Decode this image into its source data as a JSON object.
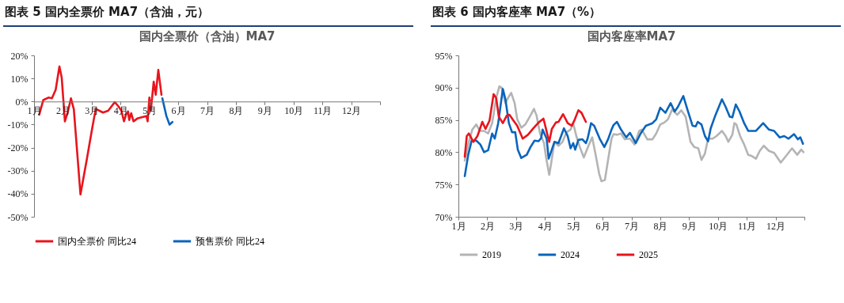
{
  "chart_data": [
    {
      "type": "line",
      "title": "图表 5   国内全票价 MA7（含油，元）",
      "subtitle": "国内全票价（含油）MA7",
      "legend": "bottom",
      "xlim": [
        1,
        13
      ],
      "xticks": [
        {
          "value": 1,
          "label": "1月"
        },
        {
          "value": 2,
          "label": "2月"
        },
        {
          "value": 3,
          "label": "3月"
        },
        {
          "value": 4,
          "label": "4月"
        },
        {
          "value": 5,
          "label": "5月"
        },
        {
          "value": 6,
          "label": "6月"
        },
        {
          "value": 7,
          "label": "7月"
        },
        {
          "value": 8,
          "label": "8月"
        },
        {
          "value": 9,
          "label": "9月"
        },
        {
          "value": 10,
          "label": "10月"
        },
        {
          "value": 11,
          "label": "11月"
        },
        {
          "value": 12,
          "label": "12月"
        },
        {
          "value": 13,
          "label": null
        }
      ],
      "ylim": [
        -50,
        20
      ],
      "yticks": [
        {
          "value": -50,
          "label": "-50%"
        },
        {
          "value": -40,
          "label": "-40%"
        },
        {
          "value": -30,
          "label": "-30%"
        },
        {
          "value": -20,
          "label": "-20%"
        },
        {
          "value": -10,
          "label": "-10%"
        },
        {
          "value": 0,
          "label": "0%"
        },
        {
          "value": 10,
          "label": "10%"
        },
        {
          "value": 20,
          "label": "20%"
        }
      ],
      "series": [
        {
          "name": "国内全票价 同比24",
          "color": "#e8141c",
          "x": [
            1.18,
            1.32,
            1.5,
            1.62,
            1.75,
            1.88,
            1.96,
            2.07,
            2.17,
            2.28,
            2.38,
            2.61,
            2.83,
            3.02,
            3.14,
            3.39,
            3.57,
            3.8,
            3.94,
            4.03,
            4.12,
            4.19,
            4.26,
            4.3,
            4.37,
            4.45,
            4.58,
            4.76,
            4.9,
            4.94,
            5.0,
            5.05,
            5.15,
            5.22,
            5.31,
            5.42
          ],
          "values": [
            -5.7,
            0.6,
            1.7,
            1.4,
            5.1,
            15.2,
            10.3,
            -8.6,
            -4.6,
            1.4,
            -3.4,
            -40.3,
            -25.1,
            -11.4,
            -3.2,
            -4.8,
            -4.0,
            -0.3,
            -2.3,
            -4.0,
            -8.6,
            -5.7,
            -4.3,
            -8.0,
            -5.1,
            -8.6,
            -7.4,
            -6.8,
            -6.3,
            -8.6,
            1.7,
            -4.0,
            8.6,
            2.9,
            13.7,
            2.9
          ]
        },
        {
          "name": "预售票价 同比24",
          "color": "#0a64bc",
          "x": [
            5.45,
            5.59,
            5.7,
            5.8
          ],
          "values": [
            1.4,
            -6.3,
            -10.0,
            -8.9
          ]
        }
      ]
    },
    {
      "type": "line",
      "title": "图表 6   国内客座率 MA7（%）",
      "subtitle": "国内客座率MA7",
      "legend": "bottom",
      "xlim": [
        1,
        13
      ],
      "xticks": [
        {
          "value": 1,
          "label": "1月"
        },
        {
          "value": 2,
          "label": "2月"
        },
        {
          "value": 3,
          "label": "3月"
        },
        {
          "value": 4,
          "label": "4月"
        },
        {
          "value": 5,
          "label": "5月"
        },
        {
          "value": 6,
          "label": "6月"
        },
        {
          "value": 7,
          "label": "7月"
        },
        {
          "value": 8,
          "label": "8月"
        },
        {
          "value": 9,
          "label": "9月"
        },
        {
          "value": 10,
          "label": "10月"
        },
        {
          "value": 11,
          "label": "11月"
        },
        {
          "value": 12,
          "label": "12月"
        },
        {
          "value": 13,
          "label": null
        }
      ],
      "ylim": [
        70,
        95
      ],
      "yticks": [
        {
          "value": 70,
          "label": "70%"
        },
        {
          "value": 75,
          "label": "75%"
        },
        {
          "value": 80,
          "label": "80%"
        },
        {
          "value": 85,
          "label": "85%"
        },
        {
          "value": 90,
          "label": "90%"
        },
        {
          "value": 95,
          "label": "95%"
        }
      ],
      "series": [
        {
          "name": "2019",
          "color": "#b4b4b4",
          "x": [
            1.22,
            1.34,
            1.48,
            1.62,
            1.74,
            1.89,
            2.03,
            2.17,
            2.31,
            2.42,
            2.5,
            2.63,
            2.72,
            2.83,
            2.95,
            3.04,
            3.18,
            3.32,
            3.5,
            3.62,
            3.71,
            3.83,
            3.97,
            4.04,
            4.15,
            4.22,
            4.33,
            4.47,
            4.61,
            4.75,
            4.89,
            4.98,
            5.09,
            5.21,
            5.35,
            5.53,
            5.64,
            5.76,
            5.88,
            5.96,
            6.08,
            6.19,
            6.31,
            6.38,
            6.5,
            6.64,
            6.77,
            6.95,
            7.11,
            7.27,
            7.36,
            7.55,
            7.73,
            7.86,
            8.0,
            8.14,
            8.27,
            8.41,
            8.59,
            8.73,
            8.88,
            9.05,
            9.18,
            9.32,
            9.43,
            9.55,
            9.66,
            9.82,
            9.95,
            10.14,
            10.27,
            10.36,
            10.5,
            10.57,
            10.64,
            10.77,
            10.91,
            11.05,
            11.18,
            11.32,
            11.45,
            11.59,
            11.77,
            11.95,
            12.18,
            12.36,
            12.57,
            12.75,
            12.89,
            12.97
          ],
          "values": [
            78.7,
            81.2,
            83.5,
            84.3,
            83.3,
            83.3,
            82.9,
            84.5,
            88.4,
            90.2,
            90.0,
            87.6,
            88.4,
            89.2,
            87.6,
            85.1,
            83.8,
            84.3,
            85.7,
            86.7,
            85.7,
            82.9,
            81.4,
            79.2,
            76.5,
            78.4,
            81.6,
            81.0,
            81.6,
            83.1,
            83.5,
            84.5,
            82.5,
            80.8,
            79.2,
            81.2,
            82.3,
            79.6,
            76.7,
            75.5,
            75.7,
            78.8,
            82.1,
            82.8,
            82.7,
            82.9,
            82.0,
            82.1,
            81.2,
            83.3,
            83.5,
            82.0,
            82.0,
            82.9,
            84.3,
            84.6,
            85.1,
            86.6,
            85.8,
            86.5,
            85.5,
            81.6,
            80.8,
            80.6,
            78.8,
            79.8,
            82.1,
            82.1,
            82.5,
            83.3,
            82.5,
            81.6,
            82.7,
            84.5,
            84.3,
            82.5,
            81.2,
            79.6,
            79.4,
            79.0,
            80.2,
            81.0,
            80.2,
            79.9,
            78.4,
            79.4,
            80.6,
            79.6,
            80.4,
            80.0
          ]
        },
        {
          "name": "2024",
          "color": "#0a64bc",
          "x": [
            1.22,
            1.34,
            1.46,
            1.62,
            1.76,
            1.89,
            2.03,
            2.17,
            2.26,
            2.38,
            2.54,
            2.63,
            2.75,
            2.86,
            2.97,
            3.06,
            3.18,
            3.37,
            3.5,
            3.64,
            3.78,
            3.87,
            3.92,
            4.06,
            4.13,
            4.24,
            4.33,
            4.47,
            4.66,
            4.79,
            4.89,
            4.98,
            5.05,
            5.16,
            5.3,
            5.42,
            5.48,
            5.6,
            5.71,
            5.9,
            6.06,
            6.19,
            6.31,
            6.38,
            6.5,
            6.64,
            6.82,
            6.95,
            7.15,
            7.32,
            7.5,
            7.73,
            7.86,
            8.0,
            8.18,
            8.36,
            8.5,
            8.61,
            8.8,
            8.95,
            9.12,
            9.23,
            9.3,
            9.43,
            9.55,
            9.66,
            9.75,
            9.91,
            10.14,
            10.27,
            10.41,
            10.5,
            10.62,
            10.75,
            10.91,
            11.05,
            11.32,
            11.57,
            11.77,
            11.95,
            12.14,
            12.3,
            12.45,
            12.64,
            12.77,
            12.86,
            12.95
          ],
          "values": [
            76.3,
            79.6,
            81.8,
            81.8,
            81.2,
            80.0,
            80.3,
            82.9,
            82.1,
            84.5,
            89.8,
            88.2,
            84.5,
            83.1,
            83.1,
            80.4,
            79.1,
            79.6,
            80.8,
            81.8,
            81.7,
            82.2,
            83.5,
            82.1,
            79.0,
            80.4,
            81.6,
            81.4,
            83.7,
            82.5,
            80.6,
            81.4,
            80.4,
            81.9,
            82.0,
            81.4,
            82.1,
            84.5,
            84.1,
            82.1,
            80.8,
            82.0,
            83.5,
            84.2,
            84.7,
            83.5,
            82.3,
            83.0,
            81.4,
            82.9,
            84.1,
            84.5,
            85.1,
            86.9,
            86.1,
            87.6,
            86.3,
            87.0,
            88.7,
            86.5,
            84.1,
            84.0,
            84.7,
            84.3,
            82.5,
            81.7,
            83.7,
            85.7,
            88.2,
            87.0,
            85.5,
            85.4,
            87.4,
            86.3,
            84.5,
            83.3,
            83.3,
            84.5,
            83.5,
            83.3,
            82.3,
            82.5,
            82.1,
            82.8,
            82.0,
            82.3,
            81.3
          ]
        },
        {
          "name": "2025",
          "color": "#e8141c",
          "x": [
            1.22,
            1.29,
            1.36,
            1.52,
            1.66,
            1.83,
            1.94,
            2.08,
            2.22,
            2.31,
            2.4,
            2.54,
            2.68,
            2.77,
            2.91,
            3.04,
            3.23,
            3.41,
            3.6,
            3.78,
            3.95,
            4.15,
            4.24,
            4.38,
            4.47,
            4.63,
            4.79,
            4.93,
            5.02,
            5.16,
            5.27,
            5.42
          ],
          "values": [
            79.3,
            82.5,
            82.9,
            81.6,
            82.5,
            84.7,
            83.6,
            84.9,
            89.0,
            88.4,
            85.5,
            84.5,
            85.7,
            85.8,
            84.9,
            84.1,
            82.1,
            82.7,
            83.7,
            84.6,
            85.2,
            81.6,
            83.6,
            84.6,
            84.7,
            85.9,
            84.5,
            84.1,
            84.9,
            86.5,
            86.1,
            84.7
          ]
        }
      ]
    }
  ]
}
